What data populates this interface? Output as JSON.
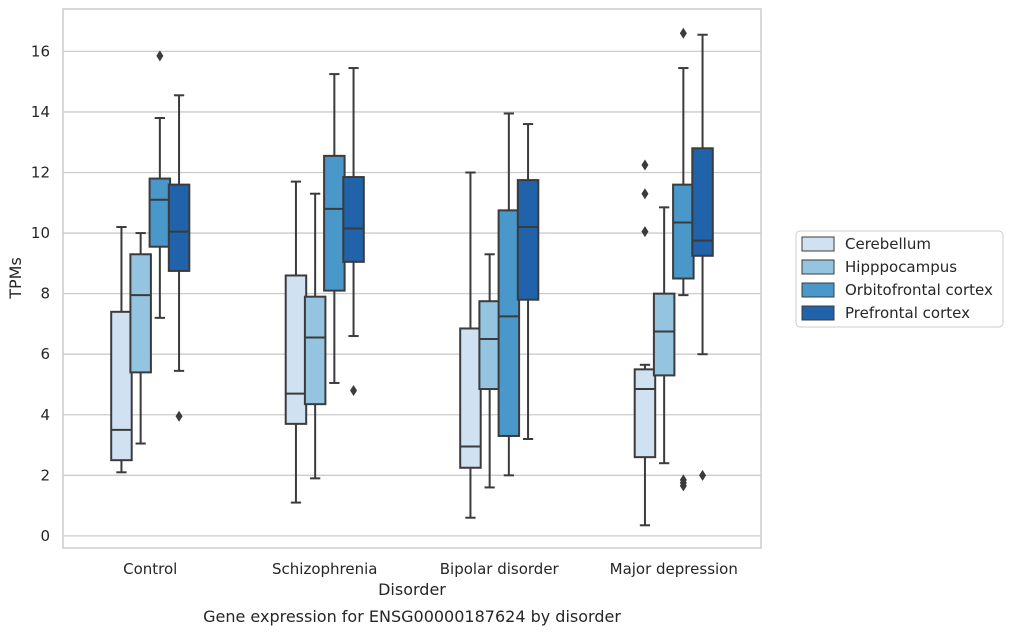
{
  "caption": "Gene expression for ENSG00000187624 by disorder",
  "chart_data": {
    "type": "box",
    "xlabel": "Disorder",
    "ylabel": "TPMs",
    "ylim": [
      -0.4,
      17.4
    ],
    "yticks": [
      0,
      2,
      4,
      6,
      8,
      10,
      12,
      14,
      16
    ],
    "grid": "horizontal",
    "legend_position": "right",
    "categories": [
      "Control",
      "Schizophrenia",
      "Bipolar disorder",
      "Major depression"
    ],
    "series": [
      {
        "name": "Cerebellum",
        "color": "#d0e1f2",
        "boxes": [
          {
            "whislo": 2.1,
            "q1": 2.5,
            "med": 3.5,
            "q3": 7.4,
            "whishi": 10.2,
            "fliers": []
          },
          {
            "whislo": 1.1,
            "q1": 3.7,
            "med": 4.7,
            "q3": 8.6,
            "whishi": 11.7,
            "fliers": []
          },
          {
            "whislo": 0.6,
            "q1": 2.25,
            "med": 2.95,
            "q3": 6.85,
            "whishi": 12.0,
            "fliers": []
          },
          {
            "whislo": 0.35,
            "q1": 2.6,
            "med": 4.85,
            "q3": 5.5,
            "whishi": 5.65,
            "fliers": [
              10.05,
              11.3,
              12.25
            ]
          }
        ]
      },
      {
        "name": "Hipppocampus",
        "color": "#94c4df",
        "boxes": [
          {
            "whislo": 3.05,
            "q1": 5.4,
            "med": 7.95,
            "q3": 9.3,
            "whishi": 10.0,
            "fliers": []
          },
          {
            "whislo": 1.9,
            "q1": 4.35,
            "med": 6.55,
            "q3": 7.9,
            "whishi": 11.3,
            "fliers": []
          },
          {
            "whislo": 1.6,
            "q1": 4.85,
            "med": 6.5,
            "q3": 7.75,
            "whishi": 9.3,
            "fliers": []
          },
          {
            "whislo": 2.4,
            "q1": 5.3,
            "med": 6.75,
            "q3": 8.0,
            "whishi": 10.85,
            "fliers": []
          }
        ]
      },
      {
        "name": "Orbitofrontal cortex",
        "color": "#4a98c9",
        "boxes": [
          {
            "whislo": 7.2,
            "q1": 9.55,
            "med": 11.1,
            "q3": 11.8,
            "whishi": 13.8,
            "fliers": [
              15.85
            ]
          },
          {
            "whislo": 5.05,
            "q1": 8.1,
            "med": 10.8,
            "q3": 12.55,
            "whishi": 15.25,
            "fliers": []
          },
          {
            "whislo": 2.0,
            "q1": 3.3,
            "med": 7.25,
            "q3": 10.75,
            "whishi": 13.95,
            "fliers": []
          },
          {
            "whislo": 7.95,
            "q1": 8.5,
            "med": 10.35,
            "q3": 11.6,
            "whishi": 15.45,
            "fliers": [
              1.65,
              1.75,
              1.85,
              16.6
            ]
          }
        ]
      },
      {
        "name": "Prefrontal cortex",
        "color": "#2163aa",
        "boxes": [
          {
            "whislo": 5.45,
            "q1": 8.75,
            "med": 10.05,
            "q3": 11.6,
            "whishi": 14.55,
            "fliers": [
              3.95
            ]
          },
          {
            "whislo": 6.6,
            "q1": 9.05,
            "med": 10.15,
            "q3": 11.85,
            "whishi": 15.45,
            "fliers": [
              4.8
            ]
          },
          {
            "whislo": 3.2,
            "q1": 7.8,
            "med": 10.2,
            "q3": 11.75,
            "whishi": 13.6,
            "fliers": []
          },
          {
            "whislo": 6.0,
            "q1": 9.25,
            "med": 9.75,
            "q3": 12.8,
            "whishi": 16.55,
            "fliers": [
              2.0
            ]
          }
        ]
      }
    ]
  }
}
